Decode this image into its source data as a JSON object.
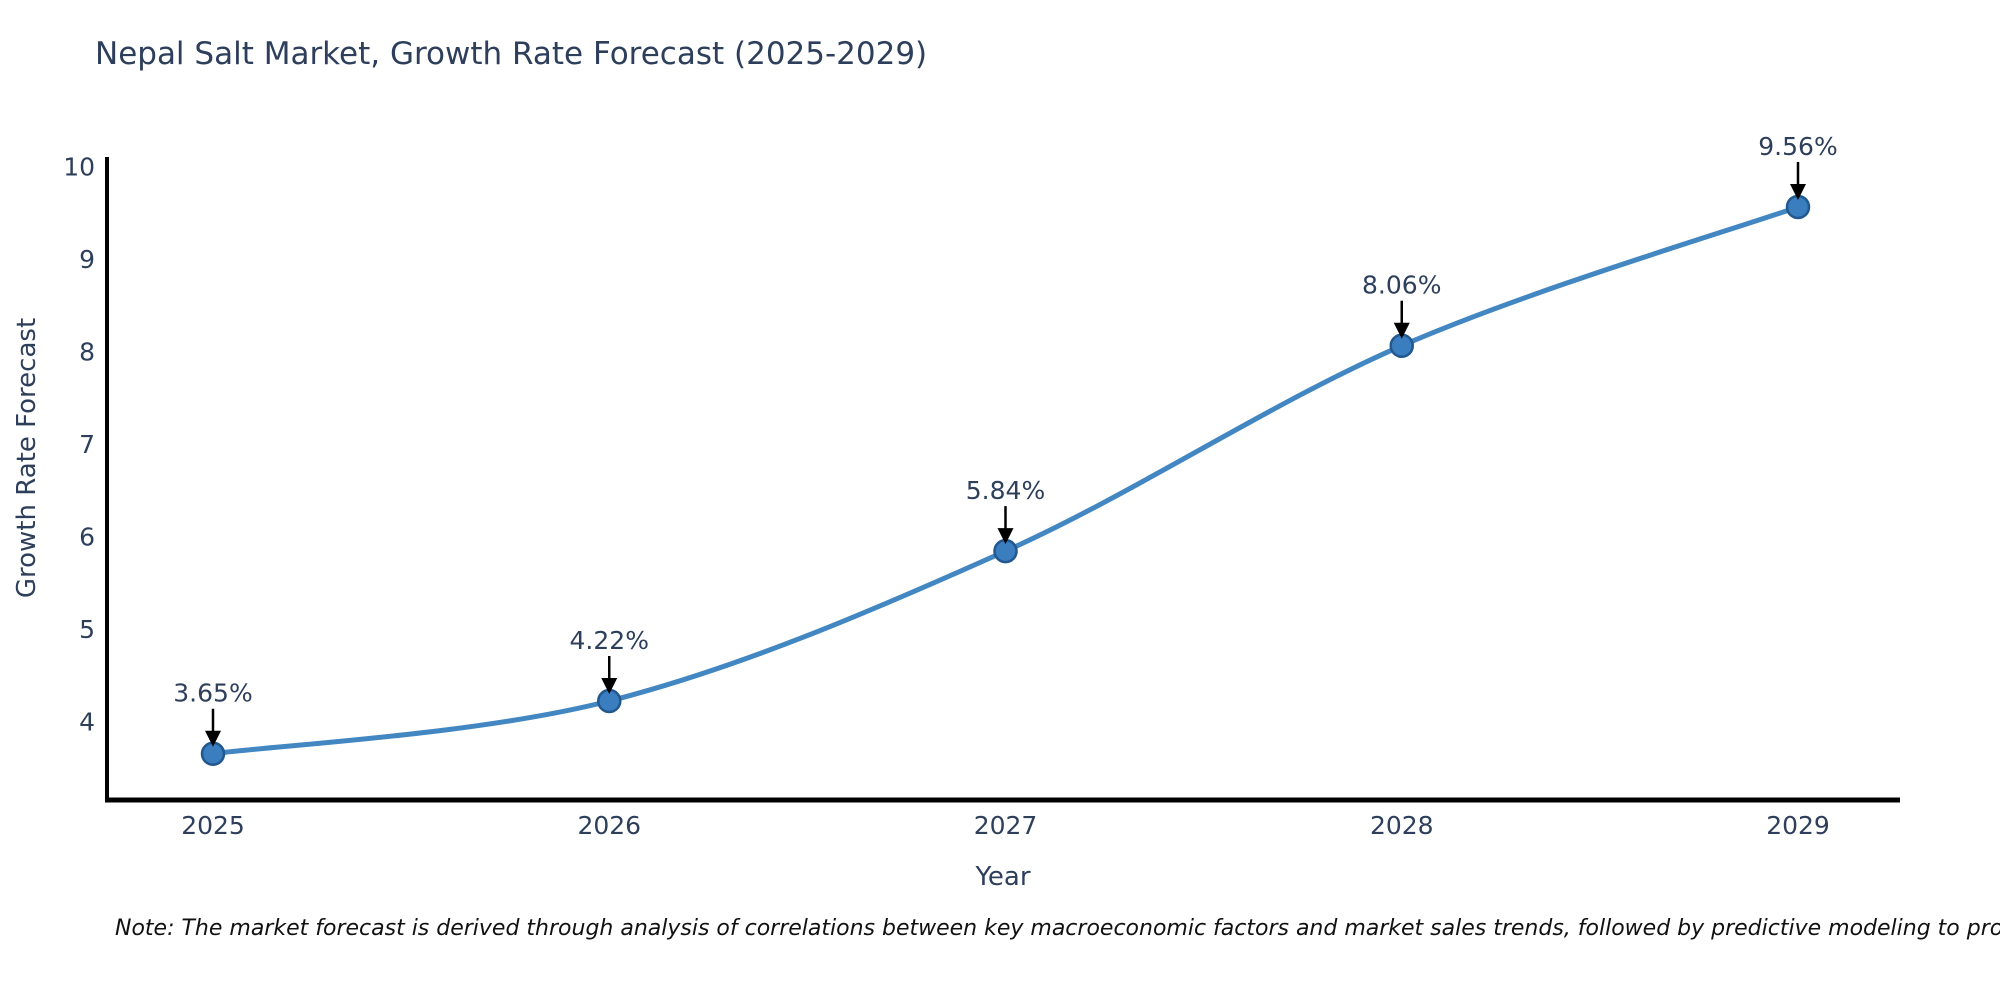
{
  "title": "Nepal Salt Market, Growth Rate Forecast (2025-2029)",
  "note": "Note: The market forecast is derived through analysis of correlations between key macroeconomic factors and market sales trends, followed by predictive modeling to project future sales",
  "chart_data": {
    "type": "line",
    "x": [
      "2025",
      "2026",
      "2027",
      "2028",
      "2029"
    ],
    "values": [
      3.65,
      4.22,
      5.84,
      8.06,
      9.56
    ],
    "point_labels": [
      "3.65%",
      "4.22%",
      "5.84%",
      "8.06%",
      "9.56%"
    ],
    "title": "Nepal Salt Market, Growth Rate Forecast (2025-2029)",
    "xlabel": "Year",
    "ylabel": "Growth Rate Forecast",
    "ylim": [
      3.15,
      10.1
    ],
    "yticks": [
      4,
      5,
      6,
      7,
      8,
      9,
      10
    ],
    "grid": false,
    "legend": "none",
    "smooth": true,
    "colors": {
      "line": "#4286c2",
      "marker_fill": "#3a7ebf",
      "marker_edge": "#21588f",
      "axis": "#000000",
      "text": "#2e3f5c",
      "annotation_arrow": "#000000"
    }
  }
}
